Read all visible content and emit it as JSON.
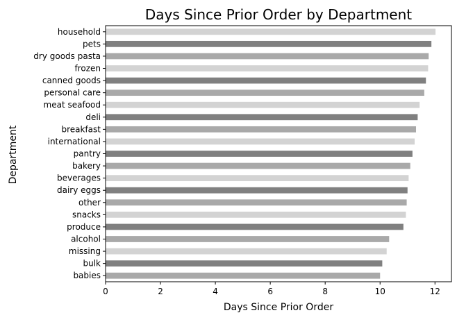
{
  "chart_data": {
    "type": "bar",
    "orientation": "horizontal",
    "title": "Days Since Prior Order by Department",
    "xlabel": "Days Since Prior Order",
    "ylabel": "Department",
    "xlim": [
      0,
      12.6
    ],
    "xticks": [
      0,
      2,
      4,
      6,
      8,
      10,
      12
    ],
    "xtick_labels": [
      "0",
      "2",
      "4",
      "6",
      "8",
      "10",
      "12"
    ],
    "grid": false,
    "legend": "none",
    "categories": [
      "household",
      "pets",
      "dry goods pasta",
      "frozen",
      "canned goods",
      "personal care",
      "meat seafood",
      "deli",
      "breakfast",
      "international",
      "pantry",
      "bakery",
      "beverages",
      "dairy eggs",
      "other",
      "snacks",
      "produce",
      "alcohol",
      "missing",
      "bulk",
      "babies"
    ],
    "values": [
      12.02,
      11.87,
      11.77,
      11.75,
      11.67,
      11.61,
      11.44,
      11.37,
      11.31,
      11.26,
      11.18,
      11.1,
      11.04,
      11.0,
      10.97,
      10.94,
      10.85,
      10.33,
      10.24,
      10.08,
      10.0
    ],
    "bar_colors": [
      "#d3d3d3",
      "#808080",
      "#a9a9a9",
      "#d3d3d3",
      "#808080",
      "#a9a9a9",
      "#d3d3d3",
      "#808080",
      "#a9a9a9",
      "#d3d3d3",
      "#808080",
      "#a9a9a9",
      "#d3d3d3",
      "#808080",
      "#a9a9a9",
      "#d3d3d3",
      "#808080",
      "#a9a9a9",
      "#d3d3d3",
      "#808080",
      "#a9a9a9"
    ]
  }
}
